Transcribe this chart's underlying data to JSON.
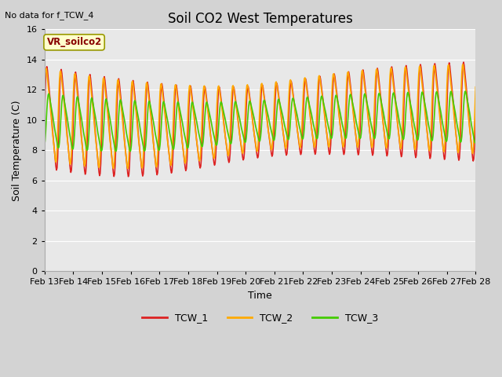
{
  "title": "Soil CO2 West Temperatures",
  "xlabel": "Time",
  "ylabel": "Soil Temperature (C)",
  "subtitle": "No data for f_TCW_4",
  "annotation": "VR_soilco2",
  "ylim": [
    0,
    16
  ],
  "yticks": [
    0,
    2,
    4,
    6,
    8,
    10,
    12,
    14,
    16
  ],
  "background_color": "#d3d3d3",
  "plot_bg_color": "#e8e8e8",
  "grid_color": "#ffffff",
  "x_labels": [
    "Feb 13",
    "Feb 14",
    "Feb 15",
    "Feb 16",
    "Feb 17",
    "Feb 18",
    "Feb 19",
    "Feb 20",
    "Feb 21",
    "Feb 22",
    "Feb 23",
    "Feb 24",
    "Feb 25",
    "Feb 26",
    "Feb 27",
    "Feb 28"
  ],
  "TCW_1_color": "#dd2222",
  "TCW_2_color": "#ffaa00",
  "TCW_3_color": "#44cc00",
  "linewidth": 1.2
}
